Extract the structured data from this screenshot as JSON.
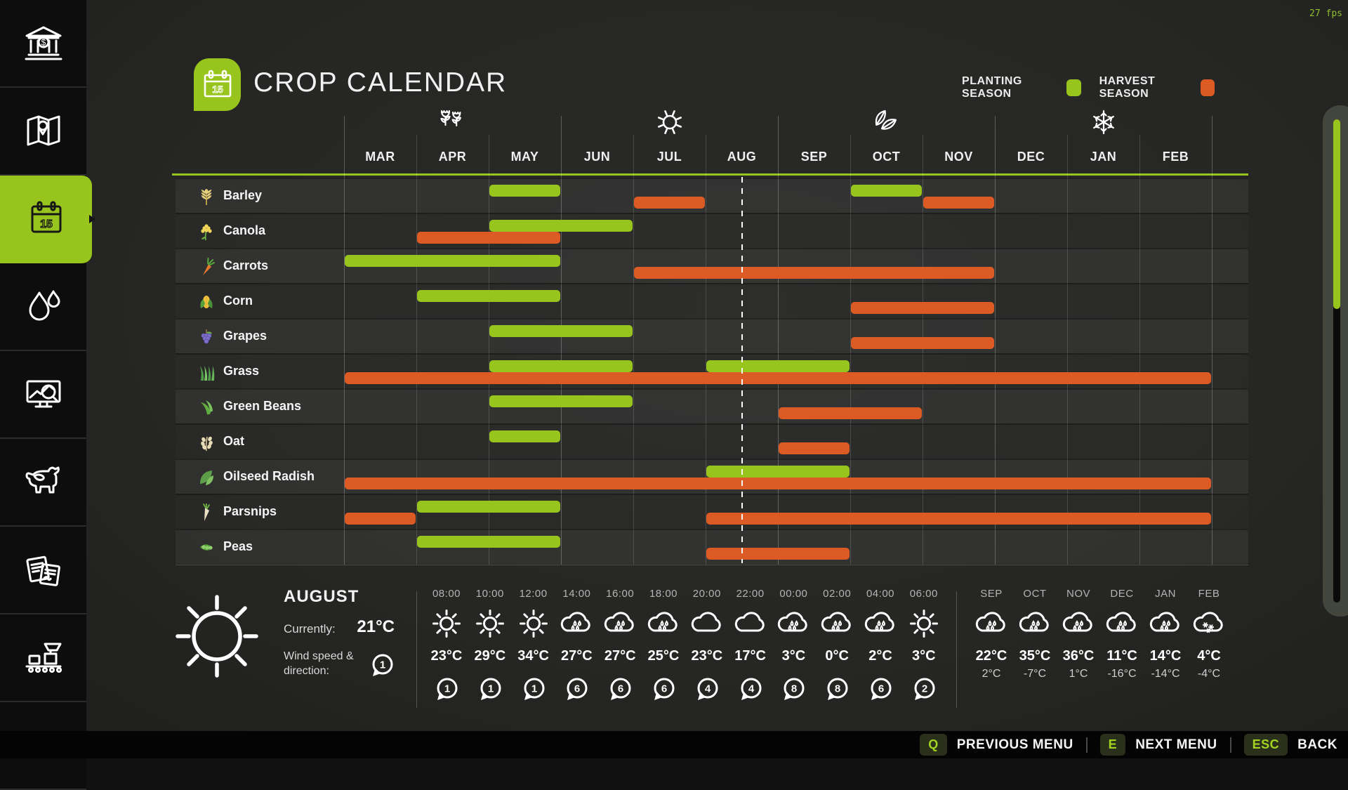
{
  "meta": {
    "fps_label": "27 fps"
  },
  "colors": {
    "planting": "#98c51d",
    "harvest": "#dc5b24",
    "sidebar_active": "#98c51d"
  },
  "sidebar": {
    "items": [
      {
        "name": "finances",
        "icon": "bank-icon",
        "active": false
      },
      {
        "name": "map",
        "icon": "map-icon",
        "active": false
      },
      {
        "name": "calendar",
        "icon": "calendar-icon",
        "active": true
      },
      {
        "name": "weather",
        "icon": "droplets-icon",
        "active": false
      },
      {
        "name": "prices",
        "icon": "sales-monitor-icon",
        "active": false
      },
      {
        "name": "animals",
        "icon": "cow-icon",
        "active": false
      },
      {
        "name": "contracts",
        "icon": "contracts-icon",
        "active": false
      },
      {
        "name": "production",
        "icon": "production-icon",
        "active": false
      },
      {
        "name": "statistics",
        "icon": "stats-arrow-icon",
        "active": false
      }
    ]
  },
  "header": {
    "title": "CROP CALENDAR",
    "title_icon_day": "15",
    "legend": [
      {
        "label": "PLANTING SEASON",
        "color": "#98c51d"
      },
      {
        "label": "HARVEST SEASON",
        "color": "#dc5b24"
      }
    ]
  },
  "calendar": {
    "months": [
      "MAR",
      "APR",
      "MAY",
      "JUN",
      "JUL",
      "AUG",
      "SEP",
      "OCT",
      "NOV",
      "DEC",
      "JAN",
      "FEB"
    ],
    "seasons": [
      {
        "name": "spring",
        "icon": "flowers-icon",
        "month": "APR"
      },
      {
        "name": "summer",
        "icon": "sun-icon",
        "month": "JUL"
      },
      {
        "name": "autumn",
        "icon": "leaves-icon",
        "month": "OCT"
      },
      {
        "name": "winter",
        "icon": "snowflake-icon",
        "month": "JAN"
      }
    ],
    "current_date_marker": {
      "month": "AUG",
      "fraction": 0.5
    },
    "crops": [
      {
        "name": "Barley",
        "icon": "wheat",
        "plant": [
          [
            "MAY",
            "MAY"
          ],
          [
            "OCT",
            "OCT"
          ]
        ],
        "harvest": [
          [
            "JUL",
            "JUL"
          ],
          [
            "NOV",
            "NOV"
          ]
        ]
      },
      {
        "name": "Canola",
        "icon": "canola-flower",
        "plant": [
          [
            "MAY",
            "JUN"
          ]
        ],
        "harvest": [
          [
            "APR",
            "MAY"
          ]
        ]
      },
      {
        "name": "Carrots",
        "icon": "carrot",
        "plant": [
          [
            "MAR",
            "MAY"
          ]
        ],
        "harvest": [
          [
            "JUL",
            "NOV"
          ]
        ]
      },
      {
        "name": "Corn",
        "icon": "corn",
        "plant": [
          [
            "APR",
            "MAY"
          ]
        ],
        "harvest": [
          [
            "OCT",
            "NOV"
          ]
        ]
      },
      {
        "name": "Grapes",
        "icon": "grapes",
        "plant": [
          [
            "MAY",
            "JUN"
          ]
        ],
        "harvest": [
          [
            "OCT",
            "NOV"
          ]
        ]
      },
      {
        "name": "Grass",
        "icon": "grass",
        "plant": [
          [
            "MAY",
            "JUN"
          ],
          [
            "AUG",
            "SEP"
          ]
        ],
        "harvest": [
          [
            "MAR",
            "FEB"
          ]
        ]
      },
      {
        "name": "Green Beans",
        "icon": "green-beans",
        "plant": [
          [
            "MAY",
            "JUN"
          ]
        ],
        "harvest": [
          [
            "SEP",
            "OCT"
          ]
        ]
      },
      {
        "name": "Oat",
        "icon": "oat",
        "plant": [
          [
            "MAY",
            "MAY"
          ]
        ],
        "harvest": [
          [
            "SEP",
            "SEP"
          ]
        ]
      },
      {
        "name": "Oilseed Radish",
        "icon": "oilseed-radish",
        "plant": [
          [
            "AUG",
            "SEP"
          ]
        ],
        "harvest": [
          [
            "MAR",
            "FEB"
          ]
        ]
      },
      {
        "name": "Parsnips",
        "icon": "parsnip",
        "plant": [
          [
            "APR",
            "MAY"
          ]
        ],
        "harvest": [
          [
            "MAR",
            "MAR"
          ],
          [
            "AUG",
            "FEB"
          ]
        ]
      },
      {
        "name": "Peas",
        "icon": "peas",
        "plant": [
          [
            "APR",
            "MAY"
          ]
        ],
        "harvest": [
          [
            "AUG",
            "SEP"
          ]
        ]
      }
    ]
  },
  "weather": {
    "current": {
      "month": "AUGUST",
      "icon": "sun",
      "currently_label": "Currently:",
      "currently_value": "21°C",
      "wind_label": "Wind speed & direction:",
      "wind_value": "1"
    },
    "hourly": [
      {
        "time": "08:00",
        "icon": "sun",
        "temp": "23°C",
        "wind": "1"
      },
      {
        "time": "10:00",
        "icon": "sun",
        "temp": "29°C",
        "wind": "1"
      },
      {
        "time": "12:00",
        "icon": "sun",
        "temp": "34°C",
        "wind": "1"
      },
      {
        "time": "14:00",
        "icon": "rain",
        "temp": "27°C",
        "wind": "6"
      },
      {
        "time": "16:00",
        "icon": "rain",
        "temp": "27°C",
        "wind": "6"
      },
      {
        "time": "18:00",
        "icon": "rain",
        "temp": "25°C",
        "wind": "6"
      },
      {
        "time": "20:00",
        "icon": "cloud",
        "temp": "23°C",
        "wind": "4"
      },
      {
        "time": "22:00",
        "icon": "cloud",
        "temp": "17°C",
        "wind": "4"
      },
      {
        "time": "00:00",
        "icon": "rain",
        "temp": "3°C",
        "wind": "8"
      },
      {
        "time": "02:00",
        "icon": "rain",
        "temp": "0°C",
        "wind": "8"
      },
      {
        "time": "04:00",
        "icon": "rain",
        "temp": "2°C",
        "wind": "6"
      },
      {
        "time": "06:00",
        "icon": "sun",
        "temp": "3°C",
        "wind": "2"
      }
    ],
    "monthly": [
      {
        "month": "SEP",
        "icon": "rain",
        "high": "22°C",
        "low": "2°C"
      },
      {
        "month": "OCT",
        "icon": "rain",
        "high": "35°C",
        "low": "-7°C"
      },
      {
        "month": "NOV",
        "icon": "rain",
        "high": "36°C",
        "low": "1°C"
      },
      {
        "month": "DEC",
        "icon": "rain",
        "high": "11°C",
        "low": "-16°C"
      },
      {
        "month": "JAN",
        "icon": "rain",
        "high": "14°C",
        "low": "-14°C"
      },
      {
        "month": "FEB",
        "icon": "snow",
        "high": "4°C",
        "low": "-4°C"
      }
    ]
  },
  "bottom_bar": {
    "hints": [
      {
        "key": "Q",
        "label": "PREVIOUS MENU"
      },
      {
        "key": "E",
        "label": "NEXT MENU"
      },
      {
        "key": "ESC",
        "label": "BACK"
      }
    ]
  }
}
